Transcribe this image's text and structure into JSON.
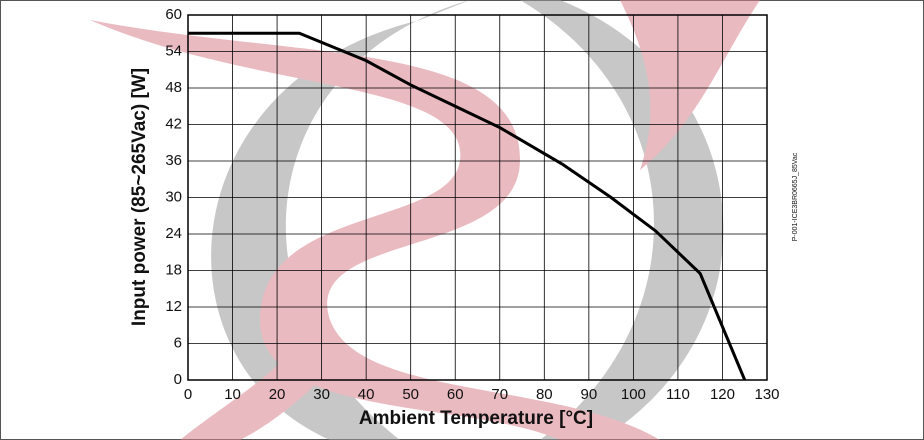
{
  "chart_data": {
    "type": "line",
    "x_label": "Ambient Temperature [°C]",
    "y_label": "Input power (85~265Vac) [W]",
    "annotation": "P-001-ICE3BR0665J_85Vac",
    "x": [
      0,
      25,
      40,
      50,
      60,
      70,
      84,
      95,
      105,
      115,
      125
    ],
    "series": [
      {
        "name": "Input power",
        "color": "#000000",
        "values": [
          57,
          57,
          52.5,
          48.5,
          45,
          41.5,
          35.5,
          30,
          24.5,
          17.5,
          0
        ]
      }
    ],
    "xlim": [
      0,
      130
    ],
    "xticks": [
      0,
      10,
      20,
      30,
      40,
      50,
      60,
      70,
      80,
      90,
      100,
      110,
      120,
      130
    ],
    "ylim": [
      0,
      60
    ],
    "yticks": [
      0,
      6,
      12,
      18,
      24,
      30,
      36,
      42,
      48,
      54,
      60
    ],
    "grid": true
  }
}
